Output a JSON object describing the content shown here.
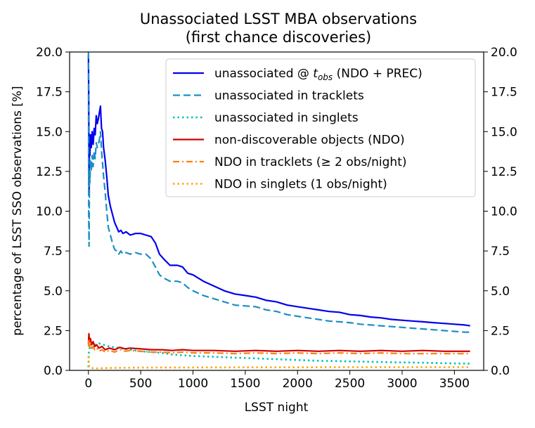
{
  "chart_data": {
    "type": "line",
    "title_line1": "Unassociated LSST MBA observations",
    "title_line2": "(first chance discoveries)",
    "xlabel": "LSST night",
    "ylabel": "percentage of LSST SSO observations [%]",
    "xlim": [
      -180,
      3780
    ],
    "ylim": [
      0,
      20
    ],
    "xticks": [
      0,
      500,
      1000,
      1500,
      2000,
      2500,
      3000,
      3500
    ],
    "yticks": [
      0.0,
      2.5,
      5.0,
      7.5,
      10.0,
      12.5,
      15.0,
      17.5,
      20.0
    ],
    "yticks_right": [
      0.0,
      2.5,
      5.0,
      7.5,
      10.0,
      12.5,
      15.0,
      17.5,
      20.0
    ],
    "grid": false,
    "legend_position": "top-right",
    "series": [
      {
        "name": "unassociated @ t_obs (NDO + PREC)",
        "legend_prefix": "unassociated @ ",
        "legend_t": "t",
        "legend_sub": "obs",
        "legend_suffix": " (NDO + PREC)",
        "color": "#0000ee",
        "dash": "solid",
        "x": [
          0,
          3,
          6,
          10,
          14,
          20,
          28,
          36,
          45,
          55,
          65,
          75,
          85,
          95,
          105,
          115,
          125,
          135,
          145,
          160,
          175,
          190,
          210,
          230,
          250,
          270,
          290,
          310,
          330,
          360,
          400,
          450,
          500,
          550,
          600,
          640,
          680,
          720,
          780,
          850,
          900,
          950,
          1000,
          1100,
          1200,
          1300,
          1400,
          1500,
          1600,
          1700,
          1800,
          1900,
          2000,
          2100,
          2200,
          2300,
          2400,
          2500,
          2600,
          2700,
          2800,
          2900,
          3000,
          3100,
          3200,
          3300,
          3400,
          3500,
          3600,
          3650
        ],
        "y": [
          19.8,
          17.5,
          11.0,
          14.2,
          13.5,
          14.8,
          14.0,
          15.0,
          14.2,
          15.2,
          14.8,
          16.0,
          15.5,
          15.8,
          16.2,
          16.6,
          15.2,
          15.0,
          14.0,
          13.2,
          12.2,
          11.0,
          10.3,
          9.8,
          9.3,
          9.0,
          8.7,
          8.8,
          8.6,
          8.7,
          8.5,
          8.6,
          8.6,
          8.5,
          8.4,
          8.0,
          7.3,
          7.0,
          6.6,
          6.6,
          6.5,
          6.1,
          6.0,
          5.6,
          5.3,
          5.0,
          4.8,
          4.7,
          4.6,
          4.4,
          4.3,
          4.1,
          4.0,
          3.9,
          3.8,
          3.7,
          3.65,
          3.5,
          3.45,
          3.35,
          3.3,
          3.2,
          3.15,
          3.1,
          3.05,
          3.0,
          2.95,
          2.9,
          2.85,
          2.8
        ]
      },
      {
        "name": "unassociated in tracklets",
        "color": "#1a8fc3",
        "dash": "dashed",
        "x": [
          0,
          3,
          6,
          10,
          14,
          20,
          28,
          36,
          45,
          55,
          65,
          75,
          85,
          95,
          105,
          115,
          125,
          135,
          145,
          160,
          175,
          190,
          210,
          230,
          250,
          270,
          290,
          310,
          330,
          360,
          400,
          450,
          500,
          550,
          600,
          640,
          680,
          720,
          780,
          850,
          900,
          950,
          1000,
          1100,
          1200,
          1300,
          1400,
          1500,
          1600,
          1700,
          1800,
          1900,
          2000,
          2100,
          2200,
          2300,
          2400,
          2500,
          2600,
          2700,
          2800,
          2900,
          3000,
          3100,
          3200,
          3300,
          3400,
          3500,
          3600,
          3650
        ],
        "y": [
          20.0,
          9.5,
          7.8,
          12.5,
          11.8,
          13.2,
          12.5,
          13.5,
          12.8,
          13.8,
          13.3,
          14.3,
          14.0,
          14.2,
          14.5,
          15.0,
          13.8,
          13.0,
          12.2,
          11.2,
          10.0,
          9.0,
          8.5,
          8.0,
          7.6,
          7.5,
          7.3,
          7.5,
          7.3,
          7.4,
          7.3,
          7.4,
          7.3,
          7.3,
          7.0,
          6.5,
          6.0,
          5.8,
          5.6,
          5.6,
          5.5,
          5.2,
          5.0,
          4.7,
          4.5,
          4.3,
          4.1,
          4.05,
          4.0,
          3.8,
          3.7,
          3.5,
          3.4,
          3.3,
          3.2,
          3.1,
          3.05,
          3.0,
          2.9,
          2.85,
          2.8,
          2.75,
          2.7,
          2.65,
          2.6,
          2.55,
          2.5,
          2.45,
          2.4,
          2.4
        ]
      },
      {
        "name": "unassociated in singlets",
        "color": "#00c0c0",
        "dash": "dotted",
        "x": [
          0,
          5,
          15,
          30,
          60,
          100,
          150,
          200,
          300,
          400,
          500,
          600,
          700,
          800,
          900,
          1000,
          1200,
          1400,
          1600,
          1800,
          2000,
          2200,
          2400,
          2600,
          2800,
          3000,
          3200,
          3400,
          3650
        ],
        "y": [
          0.2,
          1.2,
          1.5,
          1.4,
          1.6,
          1.7,
          1.6,
          1.5,
          1.4,
          1.3,
          1.2,
          1.15,
          1.1,
          1.0,
          0.95,
          0.9,
          0.85,
          0.8,
          0.75,
          0.7,
          0.65,
          0.6,
          0.58,
          0.55,
          0.52,
          0.5,
          0.48,
          0.45,
          0.42
        ]
      },
      {
        "name": "non-discoverable objects (NDO)",
        "color": "#cc0000",
        "dash": "solid",
        "x": [
          0,
          5,
          10,
          20,
          30,
          45,
          60,
          80,
          100,
          130,
          160,
          200,
          250,
          300,
          350,
          400,
          500,
          600,
          700,
          800,
          900,
          1000,
          1200,
          1400,
          1600,
          1800,
          2000,
          2200,
          2400,
          2600,
          2800,
          3000,
          3200,
          3400,
          3650
        ],
        "y": [
          1.7,
          2.3,
          1.8,
          2.0,
          1.6,
          1.8,
          1.5,
          1.6,
          1.4,
          1.5,
          1.3,
          1.4,
          1.3,
          1.45,
          1.35,
          1.4,
          1.35,
          1.3,
          1.3,
          1.25,
          1.3,
          1.25,
          1.25,
          1.2,
          1.25,
          1.2,
          1.25,
          1.2,
          1.25,
          1.2,
          1.25,
          1.2,
          1.25,
          1.2,
          1.2
        ]
      },
      {
        "name": "NDO in tracklets (≥ 2 obs/night)",
        "color": "#ff7f0e",
        "dash": "dashdot",
        "x": [
          0,
          5,
          10,
          20,
          30,
          45,
          60,
          80,
          100,
          130,
          160,
          200,
          250,
          300,
          350,
          400,
          500,
          600,
          700,
          800,
          900,
          1000,
          1200,
          1400,
          1600,
          1800,
          2000,
          2200,
          2400,
          2600,
          2800,
          3000,
          3200,
          3400,
          3650
        ],
        "y": [
          1.5,
          2.0,
          1.5,
          1.7,
          1.3,
          1.5,
          1.3,
          1.4,
          1.2,
          1.3,
          1.15,
          1.25,
          1.15,
          1.3,
          1.2,
          1.25,
          1.2,
          1.15,
          1.15,
          1.1,
          1.15,
          1.1,
          1.1,
          1.05,
          1.1,
          1.05,
          1.1,
          1.05,
          1.1,
          1.05,
          1.1,
          1.05,
          1.05,
          1.05,
          1.05
        ]
      },
      {
        "name": "NDO in singlets (1 obs/night)",
        "color": "#ffa500",
        "dash": "dotted",
        "x": [
          0,
          5,
          10,
          30,
          60,
          100,
          200,
          300,
          500,
          800,
          1000,
          1500,
          2000,
          2500,
          3000,
          3650
        ],
        "y": [
          0.9,
          0.3,
          0.2,
          0.15,
          0.12,
          0.13,
          0.15,
          0.16,
          0.17,
          0.18,
          0.18,
          0.19,
          0.19,
          0.2,
          0.2,
          0.2
        ]
      }
    ]
  }
}
